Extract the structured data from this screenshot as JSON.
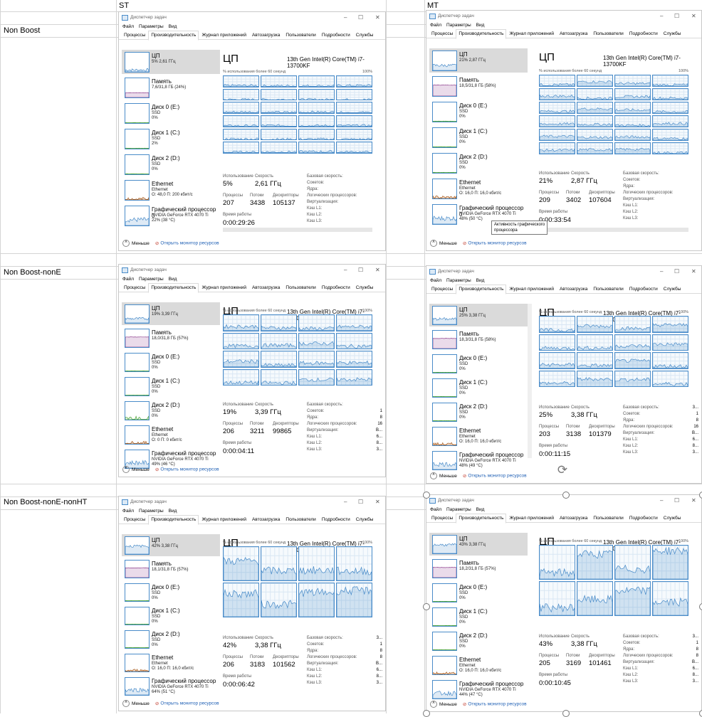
{
  "sheet": {
    "col_headers": [
      "ST",
      "MT"
    ],
    "row_labels": [
      "Non Boost",
      "Non Boost-nonE",
      "Non Boost-nonE-nonHT"
    ]
  },
  "colors": {
    "cpu": "#4a8cc9",
    "memory": "#8b3a8b",
    "disk": "#4da53a",
    "ethernet": "#a7591a",
    "selected_bg": "#dadada",
    "link": "#1e5fb4"
  },
  "common": {
    "window_title": "Диспетчер задач",
    "menu": [
      "Файл",
      "Параметры",
      "Вид"
    ],
    "tabs": [
      "Процессы",
      "Производительность",
      "Журнал приложений",
      "Автозагрузка",
      "Пользователи",
      "Подробности",
      "Службы"
    ],
    "cpu_title": "ЦП",
    "cpu_model": "13th Gen Intel(R) Core(TM) i7-13700KF",
    "graph_caption": "% использования более 60 секунд",
    "graph_max": "100%",
    "less_button": "Меньше",
    "resmon_link": "Открыть монитор ресурсов",
    "stat_labels": {
      "usage": "Использование",
      "speed": "Скорость",
      "processes": "Процессы",
      "threads": "Потоки",
      "handles": "Дескрипторы",
      "uptime": "Время работы"
    },
    "prop_labels": [
      "Базовая скорость:",
      "Сокетов:",
      "Ядра:",
      "Логических процессоров:",
      "Виртуализация:",
      "Кэш L1:",
      "Кэш L2:",
      "Кэш L3:"
    ],
    "icons": {
      "app": "task-manager-icon",
      "minimize": "minimize-icon",
      "maximize": "maximize-icon",
      "close": "close-icon",
      "less": "chevron-up-icon",
      "resmon": "resource-monitor-icon"
    }
  },
  "windows": [
    {
      "sidebar": [
        {
          "name": "ЦП",
          "s1": "5% 2,61 ГГц",
          "s2": "",
          "s3": ""
        },
        {
          "name": "Память",
          "s1": "7,6/31,8 ГБ (24%)",
          "s2": "",
          "s3": ""
        },
        {
          "name": "Диск 0 (E:)",
          "s1": "SSD",
          "s2": "0%",
          "s3": ""
        },
        {
          "name": "Диск 1 (C:)",
          "s1": "SSD",
          "s2": "2%",
          "s3": ""
        },
        {
          "name": "Диск 2 (D:)",
          "s1": "SSD",
          "s2": "0%",
          "s3": ""
        },
        {
          "name": "Ethernet",
          "s1": "Ethernet",
          "s2": "О: 48,0 П: 200 кбит/с",
          "s3": ""
        },
        {
          "name": "Графический процессор 0",
          "s1": "NVIDIA GeForce RTX 4070 Ti",
          "s2": "22% (38 °C)",
          "s3": ""
        }
      ],
      "stats": {
        "usage": "5%",
        "speed": "2,61 ГГц",
        "processes": "207",
        "threads": "3438",
        "handles": "105137",
        "uptime": "0:00:29:26"
      },
      "props": [
        "",
        "",
        "",
        "",
        "",
        "",
        "",
        ""
      ],
      "cores_shown": 24
    },
    {
      "sidebar": [
        {
          "name": "ЦП",
          "s1": "21% 2,87 ГГц",
          "s2": "",
          "s3": ""
        },
        {
          "name": "Память",
          "s1": "18,5/31,8 ГБ (58%)",
          "s2": "",
          "s3": ""
        },
        {
          "name": "Диск 0 (E:)",
          "s1": "SSD",
          "s2": "0%",
          "s3": ""
        },
        {
          "name": "Диск 1 (C:)",
          "s1": "SSD",
          "s2": "0%",
          "s3": ""
        },
        {
          "name": "Диск 2 (D:)",
          "s1": "SSD",
          "s2": "0%",
          "s3": ""
        },
        {
          "name": "Ethernet",
          "s1": "Ethernet",
          "s2": "О: 16,0 П: 16,0 кбит/с",
          "s3": ""
        },
        {
          "name": "Графический процессор 0",
          "s1": "NVIDIA GeForce RTX 4070 Ti",
          "s2": "48% (50 °C)",
          "s3": ""
        }
      ],
      "stats": {
        "usage": "21%",
        "speed": "2,87 ГГц",
        "processes": "209",
        "threads": "3402",
        "handles": "107604",
        "uptime": "0:00:33:54"
      },
      "props": [
        "",
        "",
        "",
        "",
        "",
        "",
        "",
        ""
      ],
      "tooltip": [
        "Активность графического",
        "процессора"
      ],
      "cores_shown": 24
    },
    {
      "sidebar": [
        {
          "name": "ЦП",
          "s1": "19% 3,39 ГГц",
          "s2": "",
          "s3": ""
        },
        {
          "name": "Память",
          "s1": "18,0/31,8 ГБ (57%)",
          "s2": "",
          "s3": ""
        },
        {
          "name": "Диск 0 (E:)",
          "s1": "SSD",
          "s2": "0%",
          "s3": ""
        },
        {
          "name": "Диск 1 (C:)",
          "s1": "SSD",
          "s2": "0%",
          "s3": ""
        },
        {
          "name": "Диск 2 (D:)",
          "s1": "SSD",
          "s2": "0%",
          "s3": ""
        },
        {
          "name": "Ethernet",
          "s1": "Ethernet",
          "s2": "О: 0 П: 0 кбит/с",
          "s3": ""
        },
        {
          "name": "Графический процессор",
          "s1": "NVIDIA GeForce RTX 4070 Ti",
          "s2": "49% (46 °C)",
          "s3": ""
        }
      ],
      "stats": {
        "usage": "19%",
        "speed": "3,39 ГГц",
        "processes": "206",
        "threads": "3211",
        "handles": "99865",
        "uptime": "0:00:04:11"
      },
      "props": [
        "",
        "1",
        "8",
        "16",
        "В...",
        "6...",
        "8...",
        "3..."
      ],
      "cores_shown": 16
    },
    {
      "sidebar": [
        {
          "name": "ЦП",
          "s1": "25% 3,38 ГГц",
          "s2": "",
          "s3": ""
        },
        {
          "name": "Память",
          "s1": "18,3/31,8 ГБ (58%)",
          "s2": "",
          "s3": ""
        },
        {
          "name": "Диск 0 (E:)",
          "s1": "SSD",
          "s2": "0%",
          "s3": ""
        },
        {
          "name": "Диск 1 (C:)",
          "s1": "SSD",
          "s2": "0%",
          "s3": ""
        },
        {
          "name": "Диск 2 (D:)",
          "s1": "SSD",
          "s2": "0%",
          "s3": ""
        },
        {
          "name": "Ethernet",
          "s1": "Ethernet",
          "s2": "О: 16,0 П: 16,0 кбит/с",
          "s3": ""
        },
        {
          "name": "Графический процессор",
          "s1": "NVIDIA GeForce RTX 4070 Ti",
          "s2": "48% (49 °C)",
          "s3": ""
        }
      ],
      "stats": {
        "usage": "25%",
        "speed": "3,38 ГГц",
        "processes": "203",
        "threads": "3138",
        "handles": "101379",
        "uptime": "0:00:11:15"
      },
      "props": [
        "3...",
        "1",
        "8",
        "16",
        "В...",
        "6...",
        "8...",
        "3..."
      ],
      "cores_shown": 16
    },
    {
      "sidebar": [
        {
          "name": "ЦП",
          "s1": "42% 3,38 ГГц",
          "s2": "",
          "s3": ""
        },
        {
          "name": "Память",
          "s1": "18,1/31,8 ГБ (57%)",
          "s2": "",
          "s3": ""
        },
        {
          "name": "Диск 0 (E:)",
          "s1": "SSD",
          "s2": "0%",
          "s3": ""
        },
        {
          "name": "Диск 1 (C:)",
          "s1": "SSD",
          "s2": "0%",
          "s3": ""
        },
        {
          "name": "Диск 2 (D:)",
          "s1": "SSD",
          "s2": "0%",
          "s3": ""
        },
        {
          "name": "Ethernet",
          "s1": "Ethernet",
          "s2": "О: 16,0 П: 16,0 кбит/с",
          "s3": ""
        },
        {
          "name": "Графический процессор",
          "s1": "NVIDIA GeForce RTX 4070 Ti",
          "s2": "64% (51 °C)",
          "s3": ""
        }
      ],
      "stats": {
        "usage": "42%",
        "speed": "3,38 ГГц",
        "processes": "206",
        "threads": "3183",
        "handles": "101562",
        "uptime": "0:00:06:42"
      },
      "props": [
        "3...",
        "1",
        "8",
        "8",
        "В...",
        "6...",
        "8...",
        "3..."
      ],
      "cores_shown": 8
    },
    {
      "sidebar": [
        {
          "name": "ЦП",
          "s1": "43% 3,38 ГГц",
          "s2": "",
          "s3": ""
        },
        {
          "name": "Память",
          "s1": "18,2/31,8 ГБ (57%)",
          "s2": "",
          "s3": ""
        },
        {
          "name": "Диск 0 (E:)",
          "s1": "SSD",
          "s2": "0%",
          "s3": ""
        },
        {
          "name": "Диск 1 (C:)",
          "s1": "SSD",
          "s2": "0%",
          "s3": ""
        },
        {
          "name": "Диск 2 (D:)",
          "s1": "SSD",
          "s2": "0%",
          "s3": ""
        },
        {
          "name": "Ethernet",
          "s1": "Ethernet",
          "s2": "О: 16,0 П: 16,0 кбит/с",
          "s3": ""
        },
        {
          "name": "Графический процессор",
          "s1": "NVIDIA GeForce RTX 4070 Ti",
          "s2": "44% (47 °C)",
          "s3": ""
        }
      ],
      "stats": {
        "usage": "43%",
        "speed": "3,38 ГГц",
        "processes": "205",
        "threads": "3169",
        "handles": "101461",
        "uptime": "0:00:10:45"
      },
      "props": [
        "3...",
        "1",
        "8",
        "8",
        "В...",
        "6...",
        "8...",
        "3..."
      ],
      "cores_shown": 8
    }
  ]
}
